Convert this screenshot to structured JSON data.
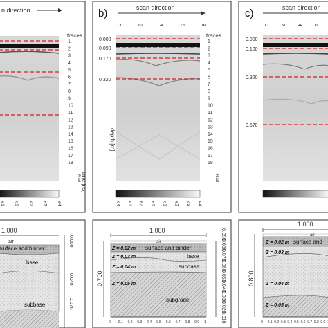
{
  "panel_b": {
    "label": "b)",
    "scan_direction": "scan direction",
    "traces_label": "traces",
    "trace_ticks": [
      "0",
      "2",
      "4",
      "6",
      "8"
    ],
    "trace_numbers": [
      "1",
      "2",
      "3",
      "4",
      "5",
      "6",
      "7",
      "8",
      "9",
      "10",
      "11",
      "12",
      "13",
      "14",
      "15",
      "16",
      "17",
      "18"
    ],
    "depth_axis_label": "depth [m]",
    "depth_marks": [
      "0.000",
      "0.090",
      "0.170",
      "0.320"
    ],
    "colorbar_ticks": [
      "e4",
      "e1",
      "e2",
      "e1",
      "e1",
      "e2",
      "e3",
      "e4"
    ],
    "rad_label": "Rad"
  },
  "panel_c": {
    "label": "c)",
    "scan_direction": "scan direction",
    "trace_ticks": [
      "0",
      "2",
      "4",
      "6",
      "8"
    ],
    "depth_marks": [
      "0.000",
      "0.100",
      "0.320",
      "0.670"
    ]
  },
  "panel_a": {
    "scan_direction": "n direction",
    "traces_label": "traces",
    "time_axis_label": "time [ns]",
    "rad_label": "Rad",
    "colorbar_ticks": [
      "e1",
      "e1",
      "e2",
      "e3",
      "e4"
    ]
  },
  "section_a": {
    "width_label": "1.000",
    "air_label": "air",
    "layer1": "surface and binder",
    "layer2": "base",
    "layer3": "subbase",
    "right_ticks": [
      "0.000",
      "0.040",
      "0.070"
    ]
  },
  "section_b": {
    "width_label": "1.000",
    "height_label": "0.700",
    "air_label": "air",
    "z1": "Z = 0.02 m",
    "z2": "Z = 0.03 m",
    "z3": "Z = 0.04 m",
    "z4": "Z = 0.05 m",
    "layer1": "surface and binder",
    "layer2": "base",
    "layer3": "subbase",
    "layer4": "subgrade",
    "x_ticks": [
      "0",
      "0.1",
      "0.2",
      "0.3",
      "0.4",
      "0.5",
      "0.6",
      "0.7",
      "0.8",
      "0.9",
      "1"
    ],
    "right_ticks": [
      "0.090",
      "0.080",
      "0.070",
      "0.060",
      "0.050",
      "0.040",
      "0.030",
      "0.020",
      "0.010"
    ]
  },
  "section_c": {
    "width_label": "1.000",
    "height_label": "0.800",
    "air_label": "air",
    "z1": "Z = 0.02 m",
    "z2": "Z = 0.03 m",
    "z3": "Z = 0.04 m",
    "z4": "Z = 0.05 m",
    "layer1": "surface and",
    "x_ticks": [
      "0",
      "0.1",
      "0.2",
      "0.3",
      "0.4",
      "0.5",
      "0.6",
      "0.7",
      "0.8",
      "0.9",
      "1"
    ]
  },
  "colors": {
    "red_line": "#d42020",
    "frame": "#333333"
  }
}
